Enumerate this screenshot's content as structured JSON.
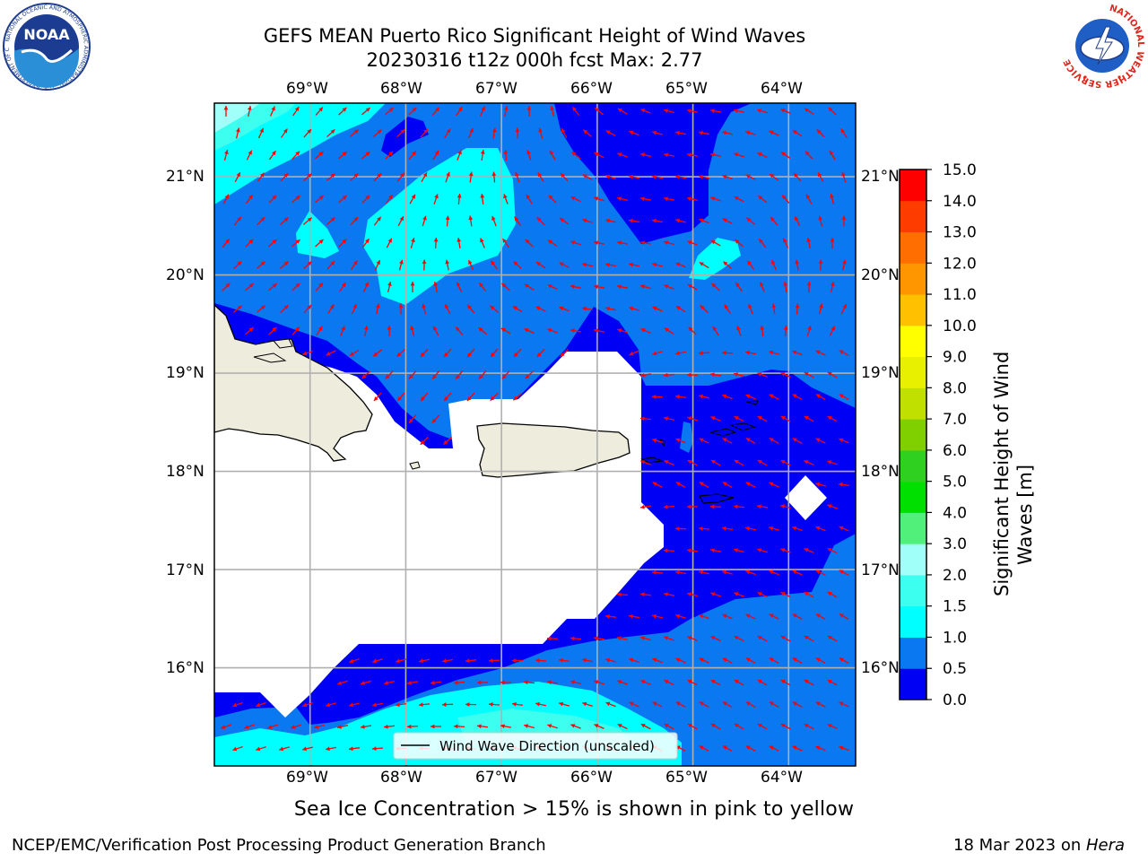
{
  "header": {
    "title_line1": "GEFS MEAN Puerto Rico Significant Height of Wind Waves",
    "title_line2": "20230316 t12z 000h fcst   Max: 2.77"
  },
  "map": {
    "lon_labels": [
      "69°W",
      "68°W",
      "67°W",
      "66°W",
      "65°W",
      "64°W"
    ],
    "lat_labels": [
      "21°N",
      "20°N",
      "19°N",
      "18°N",
      "17°N",
      "16°N"
    ],
    "lon_range": [
      -70.0,
      -63.3
    ],
    "lat_range": [
      15.0,
      21.75
    ],
    "legend_label": "Wind Wave Direction (unscaled)",
    "colors": {
      "land": "#eeecdd",
      "arrow": "#ff0000",
      "grid": "#b0b0b0"
    }
  },
  "colorbar": {
    "label": "Significant Height of Wind Waves [m]",
    "ticks": [
      "0.0",
      "0.5",
      "1.0",
      "1.5",
      "2.0",
      "3.0",
      "4.0",
      "5.0",
      "6.0",
      "7.0",
      "8.0",
      "9.0",
      "10.0",
      "11.0",
      "12.0",
      "13.0",
      "14.0",
      "15.0"
    ],
    "colors": [
      "#0000f5",
      "#0a78f0",
      "#00ffff",
      "#3cfff0",
      "#a0fff8",
      "#50f07a",
      "#00e000",
      "#30d020",
      "#80d000",
      "#c0e000",
      "#e8f000",
      "#ffff00",
      "#ffc000",
      "#ff9600",
      "#ff6e00",
      "#ff3c00",
      "#ff0000"
    ]
  },
  "subtitle": "Sea Ice Concentration > 15% is shown in pink to yellow",
  "footer": {
    "left": "NCEP/EMC/Verification Post Processing Product Generation Branch",
    "right_date": "18 Mar 2023 on ",
    "right_host": "Hera"
  },
  "logos": {
    "noaa_text": "NOAA",
    "noaa_ring_text": "NATIONAL OCEANIC AND ATMOSPHERIC ADMINISTRATION · U.S. DEPARTMENT OF COMMERCE",
    "nws_ring_text": "NATIONAL WEATHER SERVICE"
  }
}
